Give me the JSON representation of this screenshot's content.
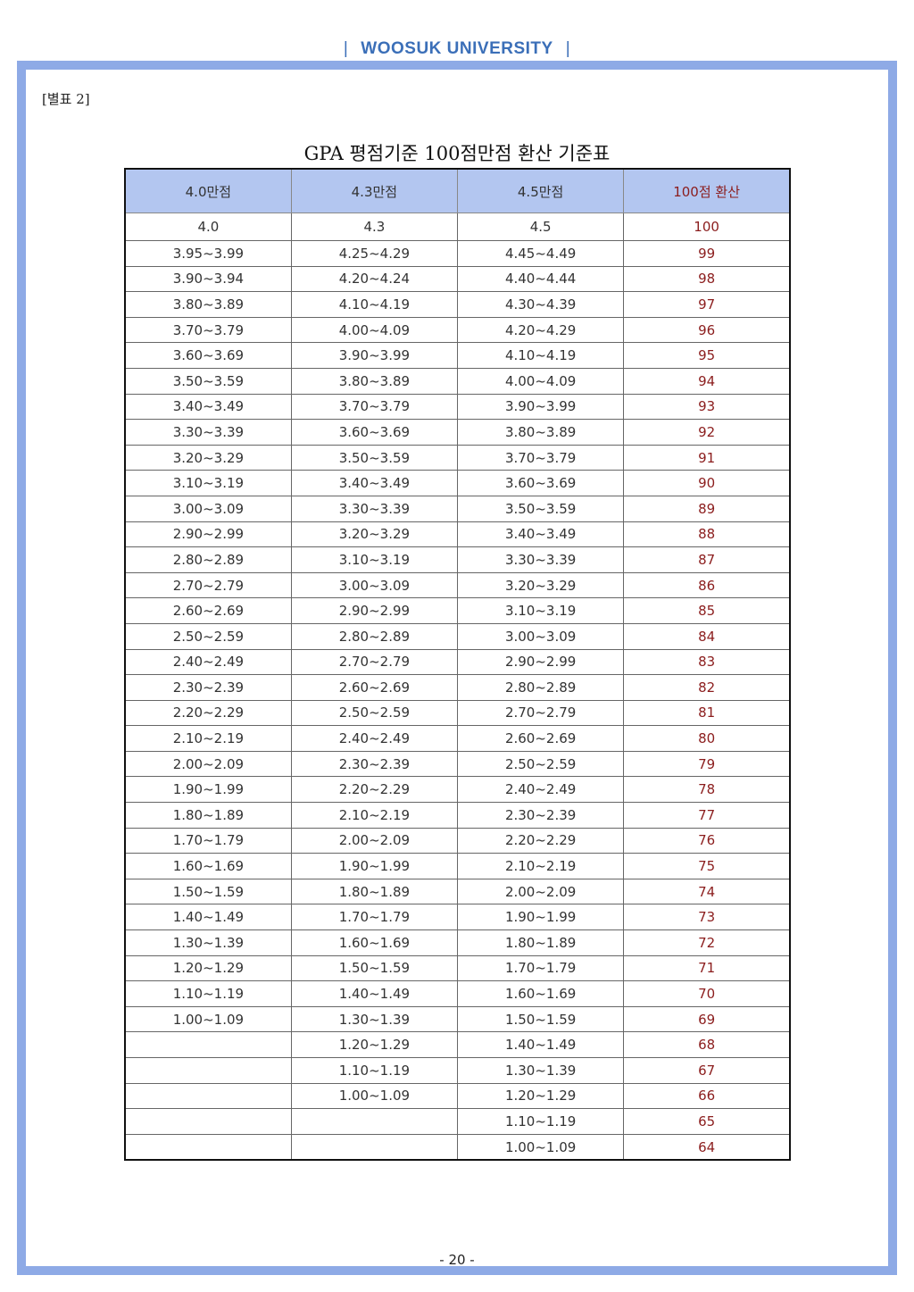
{
  "header": {
    "university": "WOOSUK UNIVERSITY"
  },
  "doc_label": "[별표 2]",
  "title": "GPA 평점기준 100점만점 환산 기준표",
  "table": {
    "columns": [
      "4.0만점",
      "4.3만점",
      "4.5만점",
      "100점 환산"
    ],
    "rows": [
      [
        "4.0",
        "4.3",
        "4.5",
        "100"
      ],
      [
        "3.95~3.99",
        "4.25~4.29",
        "4.45~4.49",
        "99"
      ],
      [
        "3.90~3.94",
        "4.20~4.24",
        "4.40~4.44",
        "98"
      ],
      [
        "3.80~3.89",
        "4.10~4.19",
        "4.30~4.39",
        "97"
      ],
      [
        "3.70~3.79",
        "4.00~4.09",
        "4.20~4.29",
        "96"
      ],
      [
        "3.60~3.69",
        "3.90~3.99",
        "4.10~4.19",
        "95"
      ],
      [
        "3.50~3.59",
        "3.80~3.89",
        "4.00~4.09",
        "94"
      ],
      [
        "3.40~3.49",
        "3.70~3.79",
        "3.90~3.99",
        "93"
      ],
      [
        "3.30~3.39",
        "3.60~3.69",
        "3.80~3.89",
        "92"
      ],
      [
        "3.20~3.29",
        "3.50~3.59",
        "3.70~3.79",
        "91"
      ],
      [
        "3.10~3.19",
        "3.40~3.49",
        "3.60~3.69",
        "90"
      ],
      [
        "3.00~3.09",
        "3.30~3.39",
        "3.50~3.59",
        "89"
      ],
      [
        "2.90~2.99",
        "3.20~3.29",
        "3.40~3.49",
        "88"
      ],
      [
        "2.80~2.89",
        "3.10~3.19",
        "3.30~3.39",
        "87"
      ],
      [
        "2.70~2.79",
        "3.00~3.09",
        "3.20~3.29",
        "86"
      ],
      [
        "2.60~2.69",
        "2.90~2.99",
        "3.10~3.19",
        "85"
      ],
      [
        "2.50~2.59",
        "2.80~2.89",
        "3.00~3.09",
        "84"
      ],
      [
        "2.40~2.49",
        "2.70~2.79",
        "2.90~2.99",
        "83"
      ],
      [
        "2.30~2.39",
        "2.60~2.69",
        "2.80~2.89",
        "82"
      ],
      [
        "2.20~2.29",
        "2.50~2.59",
        "2.70~2.79",
        "81"
      ],
      [
        "2.10~2.19",
        "2.40~2.49",
        "2.60~2.69",
        "80"
      ],
      [
        "2.00~2.09",
        "2.30~2.39",
        "2.50~2.59",
        "79"
      ],
      [
        "1.90~1.99",
        "2.20~2.29",
        "2.40~2.49",
        "78"
      ],
      [
        "1.80~1.89",
        "2.10~2.19",
        "2.30~2.39",
        "77"
      ],
      [
        "1.70~1.79",
        "2.00~2.09",
        "2.20~2.29",
        "76"
      ],
      [
        "1.60~1.69",
        "1.90~1.99",
        "2.10~2.19",
        "75"
      ],
      [
        "1.50~1.59",
        "1.80~1.89",
        "2.00~2.09",
        "74"
      ],
      [
        "1.40~1.49",
        "1.70~1.79",
        "1.90~1.99",
        "73"
      ],
      [
        "1.30~1.39",
        "1.60~1.69",
        "1.80~1.89",
        "72"
      ],
      [
        "1.20~1.29",
        "1.50~1.59",
        "1.70~1.79",
        "71"
      ],
      [
        "1.10~1.19",
        "1.40~1.49",
        "1.60~1.69",
        "70"
      ],
      [
        "1.00~1.09",
        "1.30~1.39",
        "1.50~1.59",
        "69"
      ],
      [
        "",
        "1.20~1.29",
        "1.40~1.49",
        "68"
      ],
      [
        "",
        "1.10~1.19",
        "1.30~1.39",
        "67"
      ],
      [
        "",
        "1.00~1.09",
        "1.20~1.29",
        "66"
      ],
      [
        "",
        "",
        "1.10~1.19",
        "65"
      ],
      [
        "",
        "",
        "1.00~1.09",
        "64"
      ]
    ]
  },
  "footer": {
    "page_number": "- 20 -"
  },
  "colors": {
    "frame": "#8eaae6",
    "header_bg": "#b3c6f0",
    "score_text": "#8b1d1d",
    "university_text": "#3b6fb8"
  }
}
